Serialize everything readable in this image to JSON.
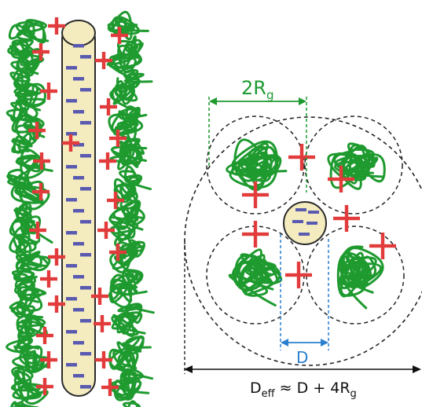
{
  "labels": {
    "rg_main": "2R",
    "rg_sub": "g",
    "d_label": "D",
    "deff_main": "D",
    "deff_sub": "eff",
    "deff_rest": " ≈ D + 4R",
    "deff_sub2": "g"
  },
  "colors": {
    "polymer": "#1e9a2f",
    "plus": "#e23b3b",
    "minus": "#5a5ab0",
    "rod_fill": "#f4ecbf",
    "rod_stroke": "#2b2b2b",
    "dash": "#222222",
    "rg_arrow": "#1e9a2f",
    "d_arrow": "#2a7fd0",
    "text_dark": "#111111"
  }
}
